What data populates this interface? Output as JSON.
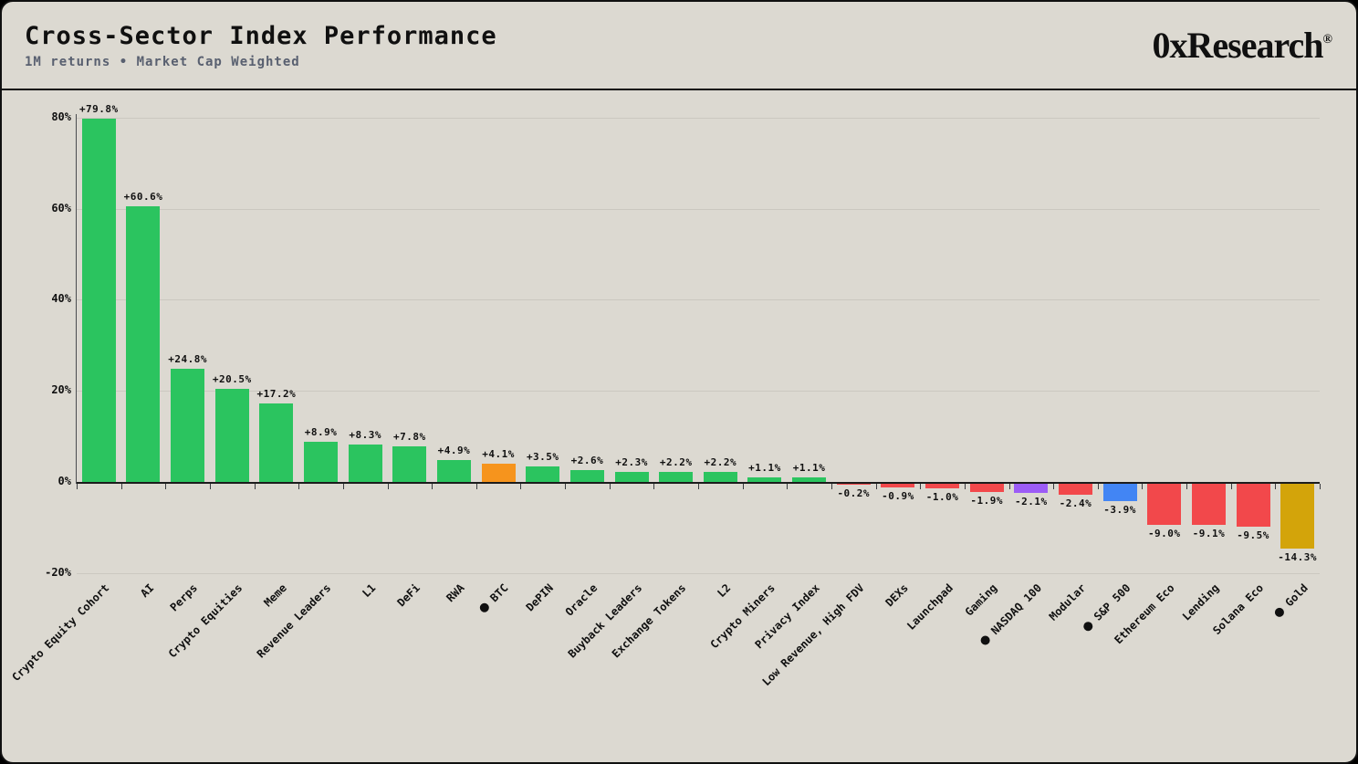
{
  "header": {
    "title": "Cross-Sector Index Performance",
    "subtitle": "1M returns • Market Cap Weighted",
    "brand": "0xResearch",
    "brand_reg": "®"
  },
  "chart_data": {
    "type": "bar",
    "title": "Cross-Sector Index Performance",
    "subtitle": "1M returns • Market Cap Weighted",
    "ylim": [
      -20,
      85
    ],
    "grid": true,
    "legend": "none",
    "yticks": [
      {
        "value": 80,
        "label": "80%"
      },
      {
        "value": 60,
        "label": "60%"
      },
      {
        "value": 40,
        "label": "40%"
      },
      {
        "value": 20,
        "label": "20%"
      },
      {
        "value": 0,
        "label": "0%"
      },
      {
        "value": -20,
        "label": "-20%"
      }
    ],
    "gridline_values": [
      80,
      60,
      40,
      20,
      -20
    ],
    "colors": {
      "positive": "#2BC45F",
      "negative": "#F2484B",
      "btc": "#F6941D",
      "nasdaq": "#9C5CF6",
      "sp500": "#4285F4",
      "gold": "#D3A40A",
      "background": "#DCD9D1",
      "text": "#101010",
      "subtitle": "#596070",
      "gridline": "#CBC8C0"
    },
    "bars": [
      {
        "label": "Crypto Equity Cohort",
        "value": 79.8,
        "display": "+79.8%",
        "color": "#2BC45F",
        "benchmark_dot": false
      },
      {
        "label": "AI",
        "value": 60.6,
        "display": "+60.6%",
        "color": "#2BC45F",
        "benchmark_dot": false
      },
      {
        "label": "Perps",
        "value": 24.8,
        "display": "+24.8%",
        "color": "#2BC45F",
        "benchmark_dot": false
      },
      {
        "label": "Crypto Equities",
        "value": 20.5,
        "display": "+20.5%",
        "color": "#2BC45F",
        "benchmark_dot": false
      },
      {
        "label": "Meme",
        "value": 17.2,
        "display": "+17.2%",
        "color": "#2BC45F",
        "benchmark_dot": false
      },
      {
        "label": "Revenue Leaders",
        "value": 8.9,
        "display": "+8.9%",
        "color": "#2BC45F",
        "benchmark_dot": false
      },
      {
        "label": "L1",
        "value": 8.3,
        "display": "+8.3%",
        "color": "#2BC45F",
        "benchmark_dot": false
      },
      {
        "label": "DeFi",
        "value": 7.8,
        "display": "+7.8%",
        "color": "#2BC45F",
        "benchmark_dot": false
      },
      {
        "label": "RWA",
        "value": 4.9,
        "display": "+4.9%",
        "color": "#2BC45F",
        "benchmark_dot": false
      },
      {
        "label": "BTC",
        "value": 4.1,
        "display": "+4.1%",
        "color": "#F6941D",
        "benchmark_dot": true
      },
      {
        "label": "DePIN",
        "value": 3.5,
        "display": "+3.5%",
        "color": "#2BC45F",
        "benchmark_dot": false
      },
      {
        "label": "Oracle",
        "value": 2.6,
        "display": "+2.6%",
        "color": "#2BC45F",
        "benchmark_dot": false
      },
      {
        "label": "Buyback Leaders",
        "value": 2.3,
        "display": "+2.3%",
        "color": "#2BC45F",
        "benchmark_dot": false
      },
      {
        "label": "Exchange Tokens",
        "value": 2.2,
        "display": "+2.2%",
        "color": "#2BC45F",
        "benchmark_dot": false
      },
      {
        "label": "L2",
        "value": 2.2,
        "display": "+2.2%",
        "color": "#2BC45F",
        "benchmark_dot": false
      },
      {
        "label": "Crypto Miners",
        "value": 1.1,
        "display": "+1.1%",
        "color": "#2BC45F",
        "benchmark_dot": false
      },
      {
        "label": "Privacy Index",
        "value": 1.1,
        "display": "+1.1%",
        "color": "#2BC45F",
        "benchmark_dot": false
      },
      {
        "label": "Low Revenue, High FDV",
        "value": -0.2,
        "display": "-0.2%",
        "color": "#F2484B",
        "benchmark_dot": false
      },
      {
        "label": "DEXs",
        "value": -0.9,
        "display": "-0.9%",
        "color": "#F2484B",
        "benchmark_dot": false
      },
      {
        "label": "Launchpad",
        "value": -1.0,
        "display": "-1.0%",
        "color": "#F2484B",
        "benchmark_dot": false
      },
      {
        "label": "Gaming",
        "value": -1.9,
        "display": "-1.9%",
        "color": "#F2484B",
        "benchmark_dot": false
      },
      {
        "label": "NASDAQ 100",
        "value": -2.1,
        "display": "-2.1%",
        "color": "#9C5CF6",
        "benchmark_dot": true
      },
      {
        "label": "Modular",
        "value": -2.4,
        "display": "-2.4%",
        "color": "#F2484B",
        "benchmark_dot": false
      },
      {
        "label": "S&P 500",
        "value": -3.9,
        "display": "-3.9%",
        "color": "#4285F4",
        "benchmark_dot": true
      },
      {
        "label": "Ethereum Eco",
        "value": -9.0,
        "display": "-9.0%",
        "color": "#F2484B",
        "benchmark_dot": false
      },
      {
        "label": "Lending",
        "value": -9.1,
        "display": "-9.1%",
        "color": "#F2484B",
        "benchmark_dot": false
      },
      {
        "label": "Solana Eco",
        "value": -9.5,
        "display": "-9.5%",
        "color": "#F2484B",
        "benchmark_dot": false
      },
      {
        "label": "Gold",
        "value": -14.3,
        "display": "-14.3%",
        "color": "#D3A40A",
        "benchmark_dot": true
      }
    ]
  }
}
